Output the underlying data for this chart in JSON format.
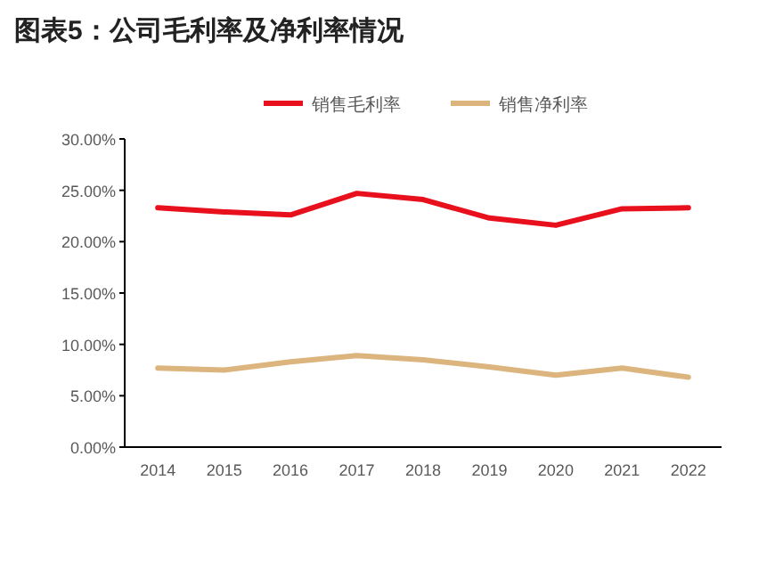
{
  "chart_data": {
    "type": "line",
    "title": "图表5：公司毛利率及净利率情况",
    "categories": [
      "2014",
      "2015",
      "2016",
      "2017",
      "2018",
      "2019",
      "2020",
      "2021",
      "2022"
    ],
    "series": [
      {
        "name": "销售毛利率",
        "color": "#e8101c",
        "values": [
          23.3,
          22.9,
          22.6,
          24.7,
          24.1,
          22.3,
          21.6,
          23.2,
          23.3
        ]
      },
      {
        "name": "销售净利率",
        "color": "#dcb47e",
        "values": [
          7.7,
          7.5,
          8.3,
          8.9,
          8.5,
          7.8,
          7.0,
          7.7,
          6.8
        ]
      }
    ],
    "ylim": [
      0,
      30
    ],
    "yticks": [
      {
        "value": 0,
        "label": "0.00%"
      },
      {
        "value": 5,
        "label": "5.00%"
      },
      {
        "value": 10,
        "label": "10.00%"
      },
      {
        "value": 15,
        "label": "15.00%"
      },
      {
        "value": 20,
        "label": "20.00%"
      },
      {
        "value": 25,
        "label": "25.00%"
      },
      {
        "value": 30,
        "label": "30.00%"
      }
    ],
    "grid": false,
    "legend": "top",
    "marker": "none",
    "line_style": "solid"
  }
}
